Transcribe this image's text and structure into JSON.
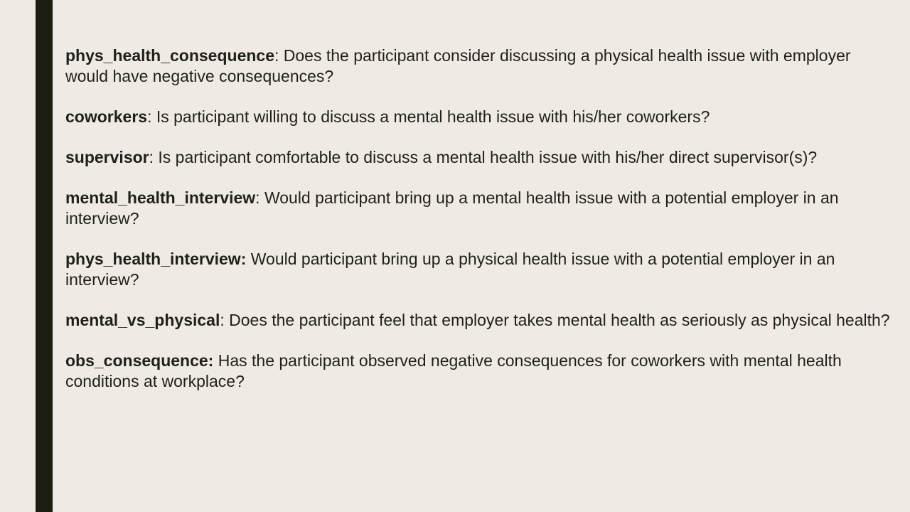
{
  "slide": {
    "accent_color": "#1c1e12",
    "background_color": "#efebe4",
    "entries": [
      {
        "term": "phys_health_consequence",
        "separator": ": ",
        "definition": "Does the participant consider discussing a physical health issue with employer would have negative consequences?"
      },
      {
        "term": "coworkers",
        "separator": ": ",
        "definition": "Is participant willing to discuss a mental health issue with his/her coworkers?"
      },
      {
        "term": "supervisor",
        "separator": ": ",
        "definition": "Is participant comfortable to discuss a mental health issue with his/her direct supervisor(s)?"
      },
      {
        "term": "mental_health_interview",
        "separator": ": ",
        "definition": "Would participant bring up a mental health issue with a potential employer in an interview?"
      },
      {
        "term": "phys_health_interview:",
        "separator": " ",
        "definition": "Would participant bring up a physical health issue with a potential employer in an interview?"
      },
      {
        "term": "mental_vs_physical",
        "separator": ": ",
        "definition": "Does the participant feel that employer takes mental health as seriously as physical health?"
      },
      {
        "term": "obs_consequence:",
        "separator": " ",
        "definition": "Has the participant observed negative consequences for coworkers with mental health conditions at workplace?"
      }
    ]
  }
}
